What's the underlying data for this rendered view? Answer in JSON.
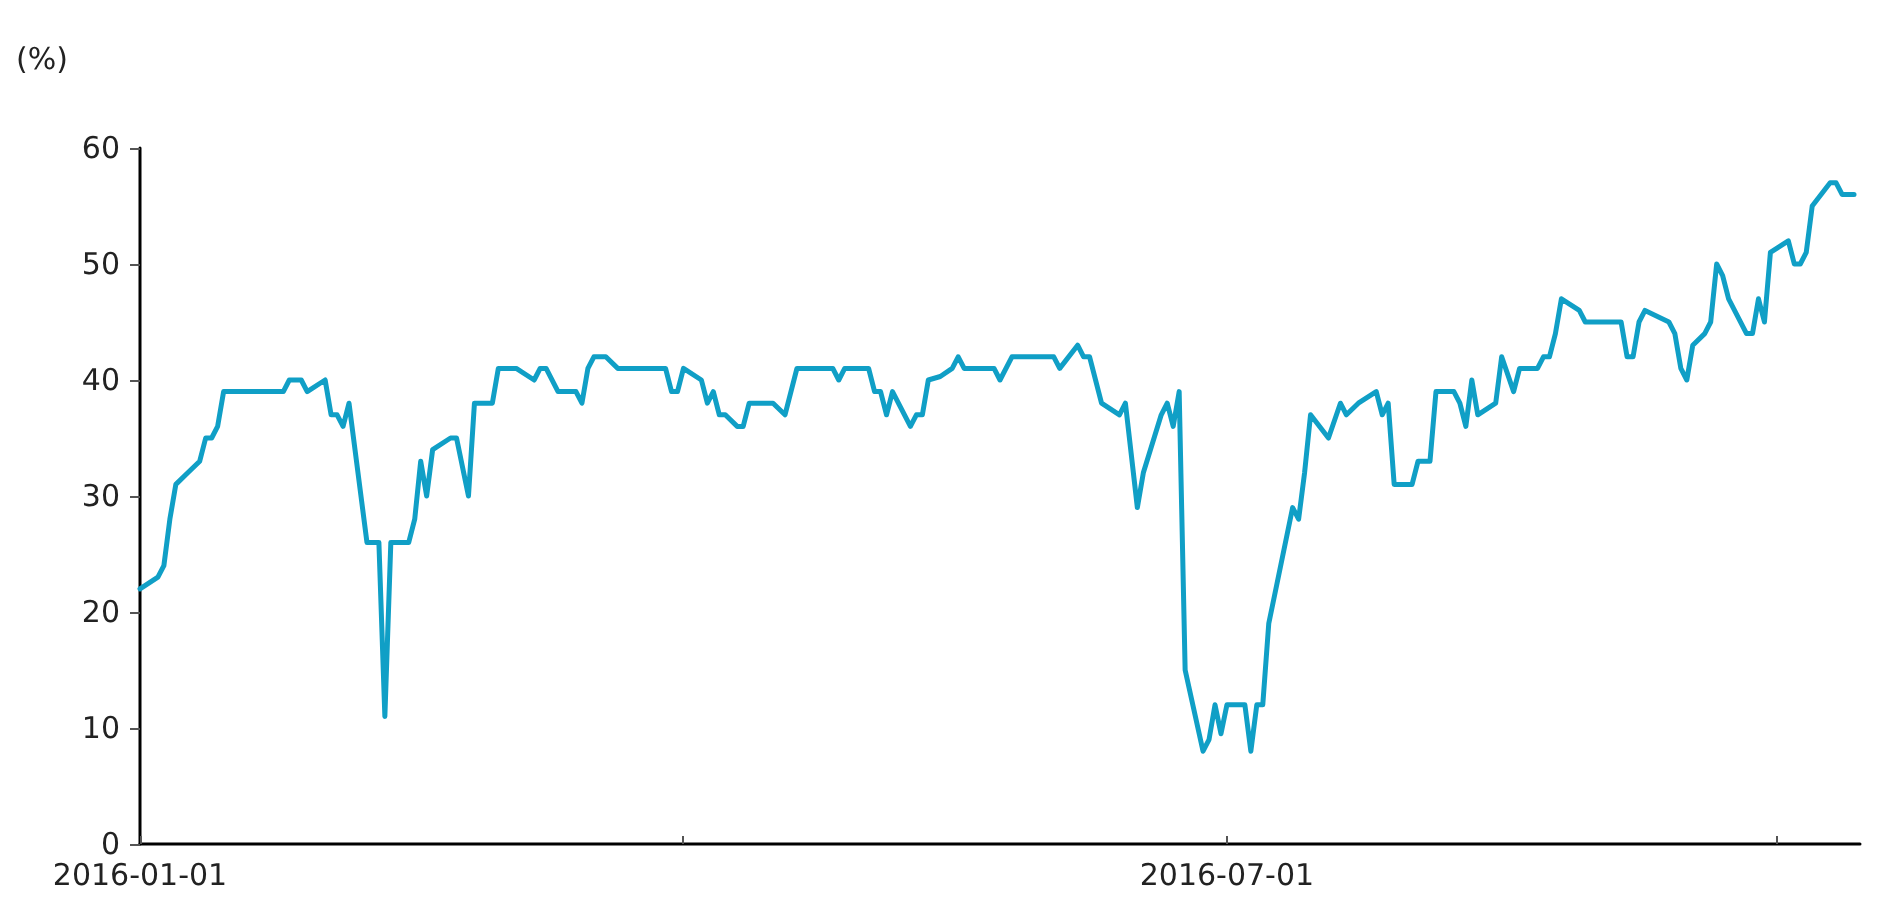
{
  "chart_data": {
    "type": "line",
    "ylabel": "(%)",
    "xlim": [
      "2016-01-01",
      "2016-10-15"
    ],
    "xticks": [
      {
        "value": "2016-01-01",
        "label": "2016-01-01"
      },
      {
        "value": "2016-04-01",
        "label": null
      },
      {
        "value": "2016-07-01",
        "label": "2016-07-01"
      },
      {
        "value": "2016-10-01",
        "label": null
      }
    ],
    "ylim": [
      0,
      60
    ],
    "yticks": [
      0,
      10,
      20,
      30,
      40,
      50,
      60
    ],
    "grid": false,
    "marker": "none",
    "line_style": "solid",
    "series": [
      {
        "color": "#109fc6",
        "x": [
          "2016-01-01",
          "2016-01-04",
          "2016-01-05",
          "2016-01-06",
          "2016-01-07",
          "2016-01-09",
          "2016-01-11",
          "2016-01-12",
          "2016-01-13",
          "2016-01-14",
          "2016-01-15",
          "2016-01-25",
          "2016-01-26",
          "2016-01-28",
          "2016-01-29",
          "2016-02-01",
          "2016-02-02",
          "2016-02-03",
          "2016-02-04",
          "2016-02-05",
          "2016-02-08",
          "2016-02-10",
          "2016-02-11",
          "2016-02-12",
          "2016-02-15",
          "2016-02-16",
          "2016-02-17",
          "2016-02-18",
          "2016-02-19",
          "2016-02-22",
          "2016-02-23",
          "2016-02-25",
          "2016-02-26",
          "2016-02-29",
          "2016-03-01",
          "2016-03-04",
          "2016-03-07",
          "2016-03-08",
          "2016-03-09",
          "2016-03-11",
          "2016-03-14",
          "2016-03-15",
          "2016-03-16",
          "2016-03-17",
          "2016-03-19",
          "2016-03-21",
          "2016-03-29",
          "2016-03-30",
          "2016-03-31",
          "2016-04-01",
          "2016-04-04",
          "2016-04-05",
          "2016-04-06",
          "2016-04-07",
          "2016-04-08",
          "2016-04-10",
          "2016-04-11",
          "2016-04-12",
          "2016-04-16",
          "2016-04-18",
          "2016-04-20",
          "2016-04-26",
          "2016-04-27",
          "2016-04-28",
          "2016-05-02",
          "2016-05-03",
          "2016-05-04",
          "2016-05-05",
          "2016-05-06",
          "2016-05-09",
          "2016-05-10",
          "2016-05-11",
          "2016-05-12",
          "2016-05-14",
          "2016-05-16",
          "2016-05-17",
          "2016-05-18",
          "2016-05-23",
          "2016-05-24",
          "2016-05-26",
          "2016-06-02",
          "2016-06-03",
          "2016-06-06",
          "2016-06-07",
          "2016-06-08",
          "2016-06-10",
          "2016-06-13",
          "2016-06-14",
          "2016-06-16",
          "2016-06-17",
          "2016-06-20",
          "2016-06-21",
          "2016-06-22",
          "2016-06-23",
          "2016-06-24",
          "2016-06-27",
          "2016-06-28",
          "2016-06-29",
          "2016-06-30",
          "2016-07-01",
          "2016-07-04",
          "2016-07-05",
          "2016-07-06",
          "2016-07-07",
          "2016-07-08",
          "2016-07-12",
          "2016-07-13",
          "2016-07-14",
          "2016-07-15",
          "2016-07-18",
          "2016-07-20",
          "2016-07-21",
          "2016-07-23",
          "2016-07-26",
          "2016-07-27",
          "2016-07-28",
          "2016-07-29",
          "2016-08-01",
          "2016-08-02",
          "2016-08-04",
          "2016-08-05",
          "2016-08-08",
          "2016-08-09",
          "2016-08-10",
          "2016-08-11",
          "2016-08-12",
          "2016-08-15",
          "2016-08-16",
          "2016-08-18",
          "2016-08-19",
          "2016-08-22",
          "2016-08-23",
          "2016-08-24",
          "2016-08-25",
          "2016-08-26",
          "2016-08-29",
          "2016-08-30",
          "2016-09-05",
          "2016-09-06",
          "2016-09-07",
          "2016-09-08",
          "2016-09-09",
          "2016-09-13",
          "2016-09-14",
          "2016-09-15",
          "2016-09-16",
          "2016-09-17",
          "2016-09-19",
          "2016-09-20",
          "2016-09-21",
          "2016-09-22",
          "2016-09-23",
          "2016-09-26",
          "2016-09-27",
          "2016-09-28",
          "2016-09-29",
          "2016-09-30",
          "2016-10-03",
          "2016-10-04",
          "2016-10-05",
          "2016-10-06",
          "2016-10-07",
          "2016-10-10",
          "2016-10-11",
          "2016-10-12",
          "2016-10-14"
        ],
        "values": [
          22,
          23,
          24,
          28,
          31,
          32,
          33,
          35,
          35,
          36,
          39,
          39,
          40,
          40,
          39,
          40,
          37,
          37,
          36,
          38,
          26,
          26,
          11,
          26,
          26,
          28,
          33,
          30,
          34,
          35,
          35,
          30,
          38,
          38,
          41,
          41,
          40,
          41,
          41,
          39,
          39,
          38,
          41,
          42,
          42,
          41,
          41,
          39,
          39,
          41,
          40,
          38,
          39,
          37,
          37,
          36,
          36,
          38,
          38,
          37,
          41,
          41,
          40,
          41,
          41,
          39,
          39,
          37,
          39,
          36,
          37,
          37,
          40,
          40.3,
          41,
          42,
          41,
          41,
          40,
          42,
          42,
          41,
          43,
          42,
          42,
          38,
          37,
          38,
          29,
          32,
          37,
          38,
          36,
          39,
          15,
          8,
          9,
          12,
          9.5,
          12,
          12,
          8,
          12,
          12,
          19,
          29,
          28,
          32,
          37,
          35,
          38,
          37,
          38,
          39,
          37,
          38,
          31,
          31,
          33,
          33,
          39,
          39,
          38,
          36,
          40,
          37,
          38,
          42,
          39,
          41,
          41,
          42,
          42,
          44,
          47,
          46,
          45,
          45,
          42,
          42,
          45,
          46,
          45,
          44,
          41,
          40,
          43,
          44,
          45,
          50,
          49,
          47,
          44,
          44,
          47,
          45,
          51,
          52,
          50,
          50,
          51,
          55,
          57,
          57,
          56,
          56
        ]
      }
    ]
  }
}
